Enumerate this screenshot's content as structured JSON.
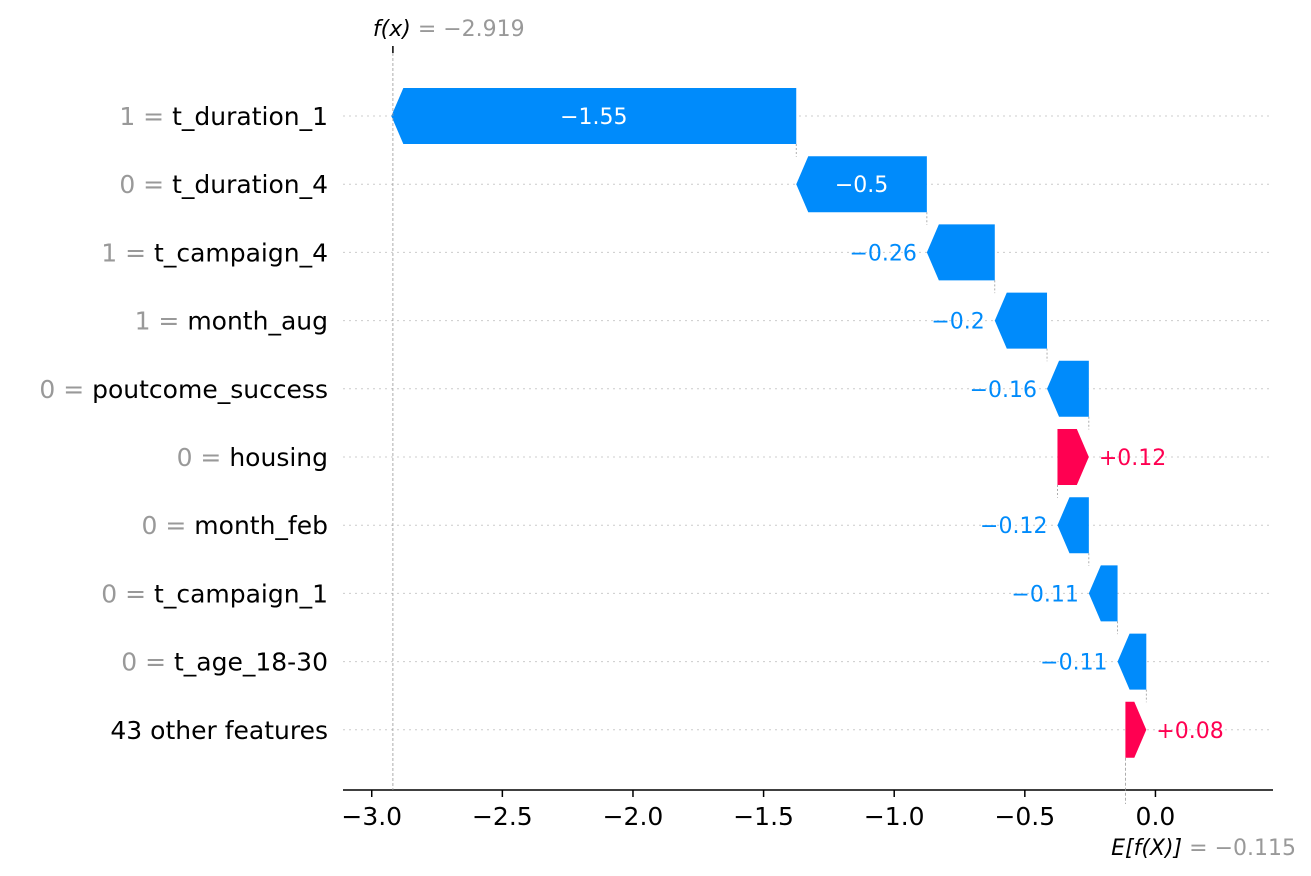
{
  "chart_data": {
    "type": "waterfall",
    "fx_label": "f(x)",
    "fx_value": "−2.919",
    "base_label": "E[f(X)]",
    "base_value": "−0.115",
    "fx": -2.919,
    "base": -0.115,
    "features": [
      {
        "value": "1",
        "name": "t_duration_1",
        "contribution": -1.55,
        "label": "−1.55"
      },
      {
        "value": "0",
        "name": "t_duration_4",
        "contribution": -0.5,
        "label": "−0.5"
      },
      {
        "value": "1",
        "name": "t_campaign_4",
        "contribution": -0.26,
        "label": "−0.26"
      },
      {
        "value": "1",
        "name": "month_aug",
        "contribution": -0.2,
        "label": "−0.2"
      },
      {
        "value": "0",
        "name": "poutcome_success",
        "contribution": -0.16,
        "label": "−0.16"
      },
      {
        "value": "0",
        "name": "housing",
        "contribution": 0.12,
        "label": "+0.12"
      },
      {
        "value": "0",
        "name": "month_feb",
        "contribution": -0.12,
        "label": "−0.12"
      },
      {
        "value": "0",
        "name": "t_campaign_1",
        "contribution": -0.11,
        "label": "−0.11"
      },
      {
        "value": "0",
        "name": "t_age_18-30",
        "contribution": -0.11,
        "label": "−0.11"
      },
      {
        "value": "",
        "name": "43 other features",
        "contribution": 0.08,
        "label": "+0.08"
      }
    ],
    "xticks": [
      -3.0,
      -2.5,
      -2.0,
      -1.5,
      -1.0,
      -0.5,
      0.0
    ],
    "xtick_labels": [
      "−3.0",
      "−2.5",
      "−2.0",
      "−1.5",
      "−1.0",
      "−0.5",
      "0.0"
    ],
    "xlim": [
      -3.11,
      0.45
    ],
    "colors": {
      "negative": "#008bfb",
      "positive": "#ff0051",
      "muted": "#999999",
      "grid": "#cccccc"
    }
  }
}
